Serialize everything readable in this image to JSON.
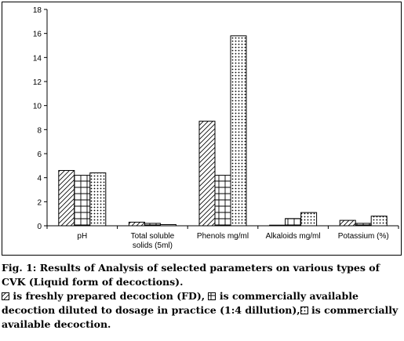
{
  "chart_data": {
    "type": "bar",
    "categories": [
      "pH",
      "Total soluble solids (5ml)",
      "Phenols mg/ml",
      "Alkaloids mg/ml",
      "Potassium (%)"
    ],
    "category_lines": [
      [
        "pH"
      ],
      [
        "Total soluble",
        "solids (5ml)"
      ],
      [
        "Phenols mg/ml"
      ],
      [
        "Alkaloids mg/ml"
      ],
      [
        "Potassium (%)"
      ]
    ],
    "series": [
      {
        "key": "FD",
        "pattern": "diagonal-hatch",
        "values": [
          4.6,
          0.3,
          8.7,
          0.05,
          0.45
        ]
      },
      {
        "key": "diluted",
        "pattern": "grid-hatch",
        "values": [
          4.2,
          0.2,
          4.2,
          0.6,
          0.2
        ]
      },
      {
        "key": "commercial",
        "pattern": "dotted",
        "values": [
          4.4,
          0.1,
          15.8,
          1.1,
          0.8
        ]
      }
    ],
    "ylim": [
      0,
      18
    ],
    "yticks": [
      0,
      2,
      4,
      6,
      8,
      10,
      12,
      14,
      16,
      18
    ],
    "grid": false,
    "legend": "below-in-caption"
  },
  "caption": {
    "line1": "Fig. 1: Results of Analysis of selected parameters on various types of CVK (Liquid form of decoctions).",
    "legend_fd": "is freshly prepared decoction (FD),",
    "legend_diluted": "is commercially available decoction diluted to dosage in practice (1:4 dillution),",
    "legend_commercial": "is commercially available decoction."
  }
}
